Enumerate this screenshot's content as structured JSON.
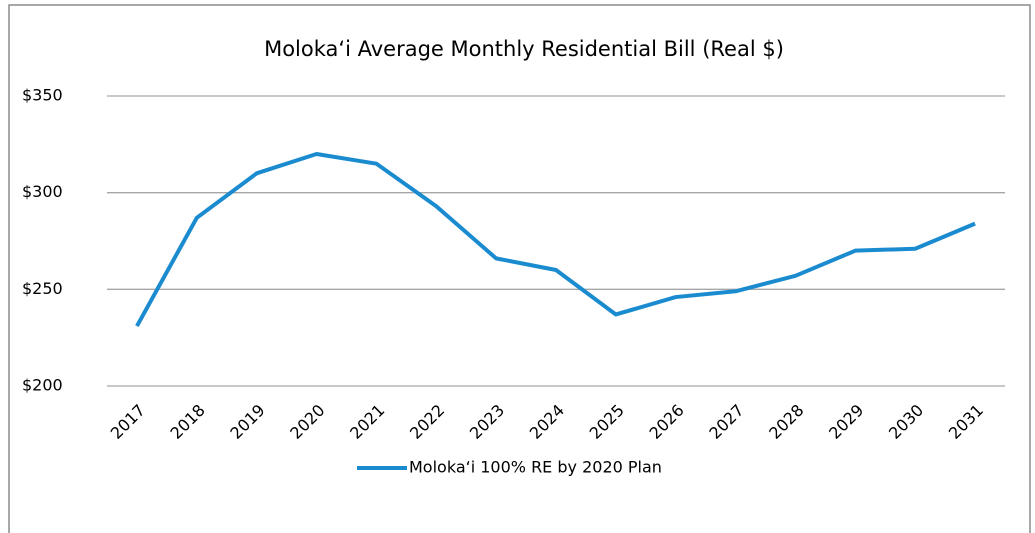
{
  "chart_data": {
    "type": "line",
    "title": "Moloka‘i Average Monthly Residential Bill (Real $)",
    "categories": [
      "2017",
      "2018",
      "2019",
      "2020",
      "2021",
      "2022",
      "2023",
      "2024",
      "2025",
      "2026",
      "2027",
      "2028",
      "2029",
      "2030",
      "2031"
    ],
    "series": [
      {
        "name": "Moloka‘i 100% RE by 2020 Plan",
        "color": "#1b8bd0",
        "values": [
          231,
          287,
          310,
          320,
          315,
          293,
          266,
          260,
          237,
          246,
          249,
          257,
          270,
          271,
          284
        ]
      }
    ],
    "ylim": [
      200,
      350
    ],
    "yticks": [
      {
        "value": 200,
        "label": "$200"
      },
      {
        "value": 250,
        "label": "$250"
      },
      {
        "value": 300,
        "label": "$300"
      },
      {
        "value": 350,
        "label": "$350"
      }
    ],
    "grid": true,
    "legend": "bottom"
  }
}
